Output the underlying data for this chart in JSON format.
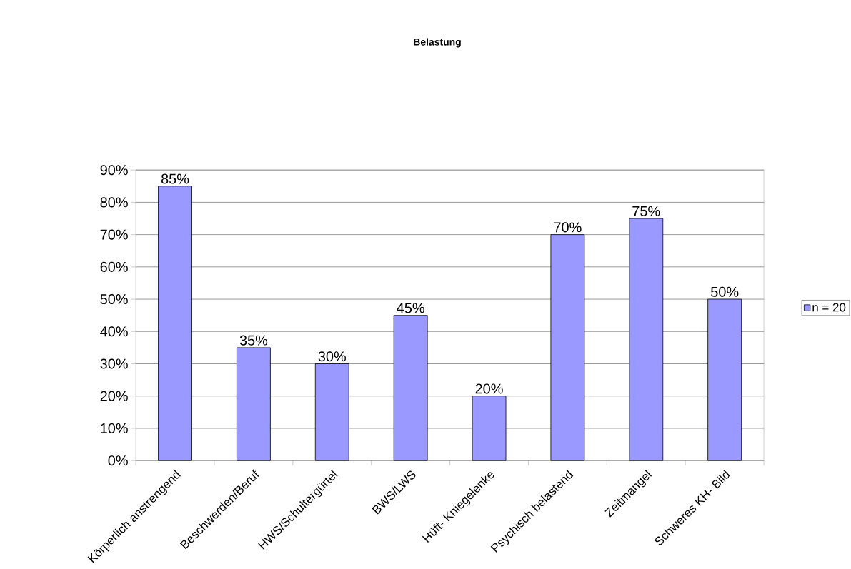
{
  "chart_data": {
    "type": "bar",
    "title": "Belastung",
    "categories": [
      "Körperlich anstrengend",
      "Beschwerden/Beruf",
      "HWS/Schultergürtel",
      "BWS/LWS",
      "Hüft- Kniegelenke",
      "Psychisch belastend",
      "Zeitmangel",
      "Schweres KH- Bild"
    ],
    "series": [
      {
        "name": "n = 20",
        "color": "#9999ff",
        "values": [
          85,
          35,
          30,
          45,
          20,
          70,
          75,
          50
        ],
        "value_labels": [
          "85%",
          "35%",
          "30%",
          "45%",
          "20%",
          "70%",
          "75%",
          "50%"
        ]
      }
    ],
    "ylim": [
      0,
      90
    ],
    "yticks": [
      {
        "value": 0,
        "label": "0%"
      },
      {
        "value": 10,
        "label": "10%"
      },
      {
        "value": 20,
        "label": "20%"
      },
      {
        "value": 30,
        "label": "30%"
      },
      {
        "value": 40,
        "label": "40%"
      },
      {
        "value": 50,
        "label": "50%"
      },
      {
        "value": 60,
        "label": "60%"
      },
      {
        "value": 70,
        "label": "70%"
      },
      {
        "value": 80,
        "label": "80%"
      },
      {
        "value": 90,
        "label": "90%"
      }
    ],
    "grid": "y",
    "legend": "right"
  }
}
